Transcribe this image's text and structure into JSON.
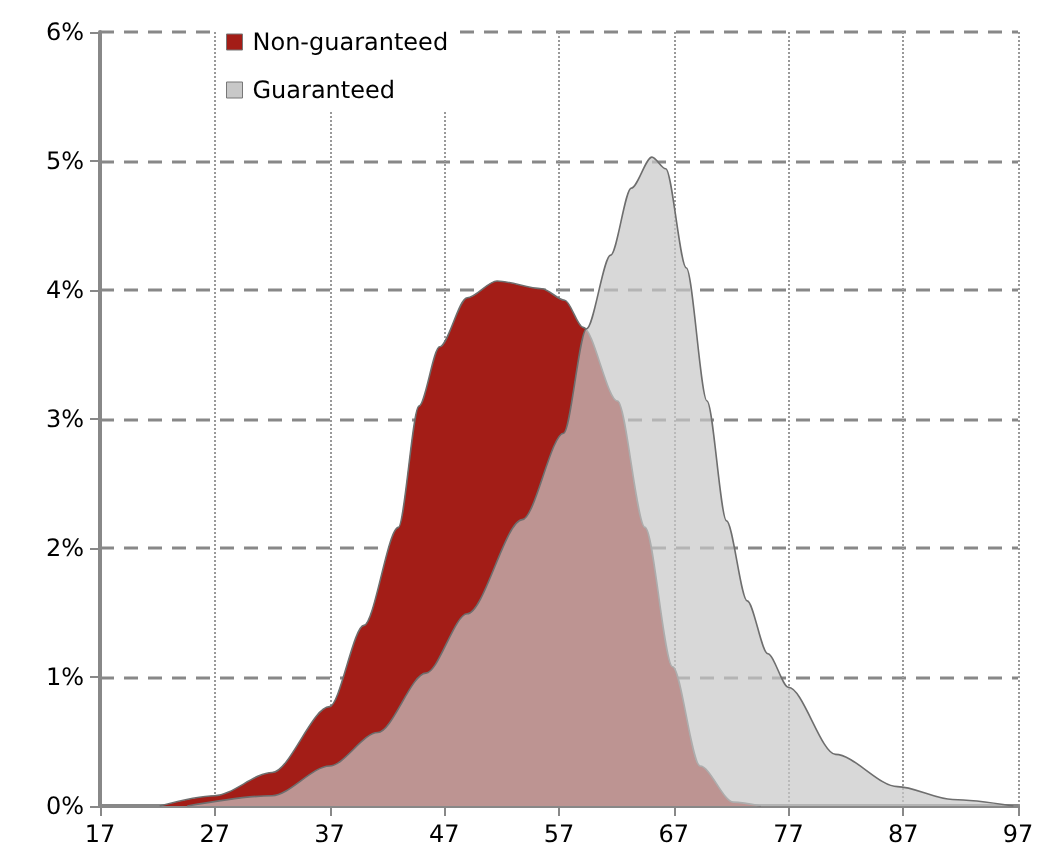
{
  "chart_data": {
    "type": "area",
    "xlim": [
      17,
      97
    ],
    "xticks": [
      17,
      27,
      37,
      47,
      57,
      67,
      77,
      87,
      97
    ],
    "ylim": [
      0,
      6
    ],
    "yticks": [
      {
        "value": 0,
        "label": "0%"
      },
      {
        "value": 1,
        "label": "1%"
      },
      {
        "value": 2,
        "label": "2%"
      },
      {
        "value": 3,
        "label": "3%"
      },
      {
        "value": 4,
        "label": "4%"
      },
      {
        "value": 5,
        "label": "5%"
      },
      {
        "value": 6,
        "label": "6%"
      }
    ],
    "grid": true,
    "legend": "top left",
    "marker": "none",
    "series": [
      {
        "name": "Non-guaranteed",
        "color": "#a31d17",
        "x": [
          22.2,
          27,
          32,
          37,
          40,
          43,
          44.8,
          46.6,
          49,
          51.6,
          55.5,
          57.5,
          59.1,
          62.1,
          64.5,
          66.9,
          69.3,
          72.2,
          74.6
        ],
        "values": [
          0,
          0.08,
          0.26,
          0.77,
          1.4,
          2.16,
          3.1,
          3.56,
          3.94,
          4.07,
          4.01,
          3.92,
          3.71,
          3.14,
          2.16,
          1.08,
          0.31,
          0.03,
          0
        ]
      },
      {
        "name": "Guaranteed",
        "color": "#c8c8c8",
        "x": [
          24.6,
          32,
          37,
          41.2,
          45.4,
          49,
          53.8,
          57.4,
          59.4,
          61.5,
          63.3,
          65.1,
          66.3,
          68.1,
          69.9,
          71.6,
          73.4,
          75.2,
          77,
          81.1,
          86.5,
          91.3,
          96.6
        ],
        "values": [
          0,
          0.08,
          0.31,
          0.57,
          1.03,
          1.49,
          2.22,
          2.89,
          3.7,
          4.27,
          4.79,
          5.03,
          4.94,
          4.17,
          3.14,
          2.21,
          1.59,
          1.18,
          0.92,
          0.4,
          0.15,
          0.05,
          0
        ]
      }
    ]
  }
}
